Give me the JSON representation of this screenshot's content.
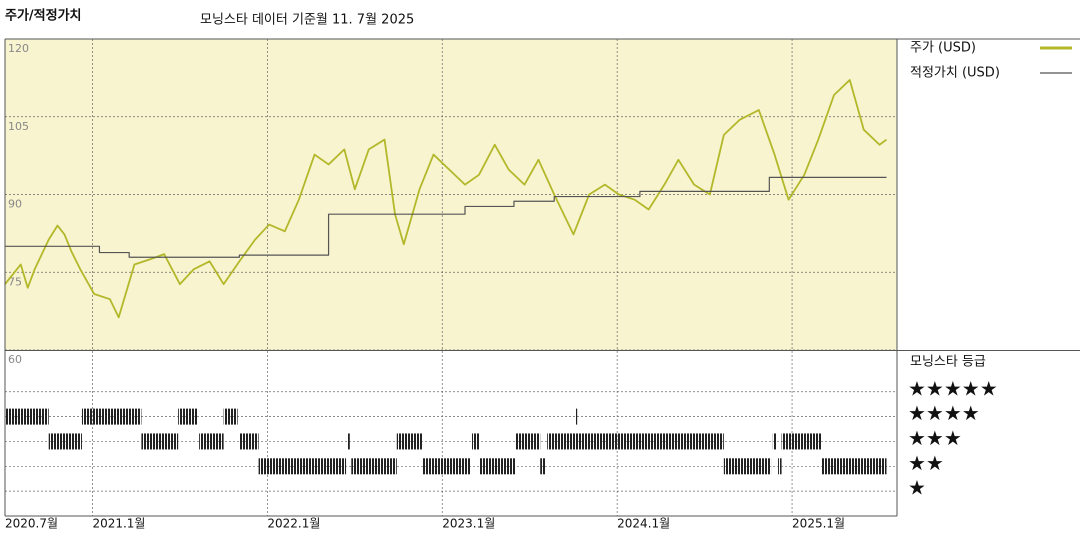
{
  "chart_data": [
    {
      "type": "line",
      "title": "주가/적정가치",
      "subtitle": "모닝스타 데이터 기준월 11. 7월 2025",
      "xlim": [
        2020.5,
        2025.6
      ],
      "xticks": [
        {
          "value": 2020.5,
          "label": "2020.7월"
        },
        {
          "value": 2021.0,
          "label": "2021.1월"
        },
        {
          "value": 2022.0,
          "label": "2022.1월"
        },
        {
          "value": 2023.0,
          "label": "2023.1월"
        },
        {
          "value": 2024.0,
          "label": "2024.1월"
        },
        {
          "value": 2025.0,
          "label": "2025.1월"
        }
      ],
      "ylim": [
        60,
        120
      ],
      "yticks": [
        60,
        75,
        90,
        105,
        120
      ],
      "grid": true,
      "series": [
        {
          "name": "주가 (USD)",
          "color": "#b3b82a",
          "x": [
            2020.5,
            2020.59,
            2020.63,
            2020.67,
            2020.75,
            2020.8,
            2020.84,
            2020.88,
            2020.93,
            2021.01,
            2021.1,
            2021.15,
            2021.24,
            2021.33,
            2021.41,
            2021.5,
            2021.58,
            2021.67,
            2021.75,
            2021.84,
            2021.93,
            2022.01,
            2022.1,
            2022.18,
            2022.27,
            2022.35,
            2022.44,
            2022.5,
            2022.58,
            2022.67,
            2022.73,
            2022.78,
            2022.87,
            2022.95,
            2023.04,
            2023.13,
            2023.21,
            2023.3,
            2023.38,
            2023.47,
            2023.55,
            2023.64,
            2023.75,
            2023.84,
            2023.93,
            2024.01,
            2024.1,
            2024.18,
            2024.27,
            2024.35,
            2024.44,
            2024.53,
            2024.61,
            2024.7,
            2024.81,
            2024.9,
            2024.98,
            2025.07,
            2025.15,
            2025.24,
            2025.33,
            2025.41,
            2025.5,
            2025.54
          ],
          "values": [
            72.7,
            76.5,
            72.0,
            75.6,
            81.3,
            84.0,
            82.3,
            79,
            75.6,
            70.8,
            69.8,
            66.3,
            76.5,
            77.5,
            78.5,
            72.7,
            75.6,
            77.1,
            72.7,
            77.1,
            81.3,
            84.2,
            82.9,
            89,
            97.7,
            95.8,
            98.7,
            91,
            98.7,
            100.6,
            86.2,
            80.4,
            91,
            97.7,
            94.8,
            91.9,
            93.8,
            99.6,
            94.8,
            91.9,
            96.7,
            90,
            82.3,
            90,
            91.9,
            90,
            89,
            87.1,
            91.9,
            96.7,
            91.9,
            90,
            101.5,
            104.4,
            106.3,
            97.7,
            89,
            93.8,
            100.6,
            109.2,
            112.1,
            102.5,
            99.6,
            100.6
          ]
        },
        {
          "name": "적정가치 (USD)",
          "color": "#555555",
          "drawstyle": "steps-post",
          "x": [
            2020.5,
            2021.04,
            2021.21,
            2021.84,
            2022.35,
            2023.13,
            2023.41,
            2023.64,
            2024.13,
            2024.87,
            2025.54
          ],
          "values": [
            80,
            78.8,
            77.9,
            78.3,
            86.2,
            87.7,
            88.7,
            89.6,
            90.6,
            93.3,
            93.3
          ]
        }
      ]
    },
    {
      "type": "rating",
      "title": "모닝스타 등급",
      "categories": [
        "★★★★★",
        "★★★★",
        "★★★",
        "★★",
        "★"
      ],
      "category_values": [
        5,
        4,
        3,
        2,
        1
      ],
      "xlim": [
        2020.5,
        2025.6
      ],
      "ylim": [
        0,
        6.6
      ],
      "periods": [
        {
          "start": 2020.5,
          "end": 2020.75,
          "stars": 4
        },
        {
          "start": 2020.94,
          "end": 2021.28,
          "stars": 4
        },
        {
          "start": 2021.49,
          "end": 2021.6,
          "stars": 4
        },
        {
          "start": 2021.75,
          "end": 2021.83,
          "stars": 4
        },
        {
          "start": 2023.76,
          "end": 2023.77,
          "stars": 4
        },
        {
          "start": 2020.75,
          "end": 2020.94,
          "stars": 3
        },
        {
          "start": 2021.28,
          "end": 2021.49,
          "stars": 3
        },
        {
          "start": 2021.61,
          "end": 2021.75,
          "stars": 3
        },
        {
          "start": 2021.84,
          "end": 2021.95,
          "stars": 3
        },
        {
          "start": 2022.46,
          "end": 2022.47,
          "stars": 3
        },
        {
          "start": 2022.74,
          "end": 2022.89,
          "stars": 3
        },
        {
          "start": 2023.17,
          "end": 2023.21,
          "stars": 3
        },
        {
          "start": 2023.42,
          "end": 2023.56,
          "stars": 3
        },
        {
          "start": 2023.6,
          "end": 2024.61,
          "stars": 3
        },
        {
          "start": 2024.89,
          "end": 2024.91,
          "stars": 3
        },
        {
          "start": 2024.94,
          "end": 2025.17,
          "stars": 3
        },
        {
          "start": 2021.95,
          "end": 2022.45,
          "stars": 2
        },
        {
          "start": 2022.48,
          "end": 2022.74,
          "stars": 2
        },
        {
          "start": 2022.89,
          "end": 2023.16,
          "stars": 2
        },
        {
          "start": 2023.21,
          "end": 2023.42,
          "stars": 2
        },
        {
          "start": 2023.56,
          "end": 2023.59,
          "stars": 2
        },
        {
          "start": 2024.61,
          "end": 2024.88,
          "stars": 2
        },
        {
          "start": 2024.92,
          "end": 2024.94,
          "stars": 2
        },
        {
          "start": 2025.17,
          "end": 2025.54,
          "stars": 2
        }
      ]
    }
  ]
}
